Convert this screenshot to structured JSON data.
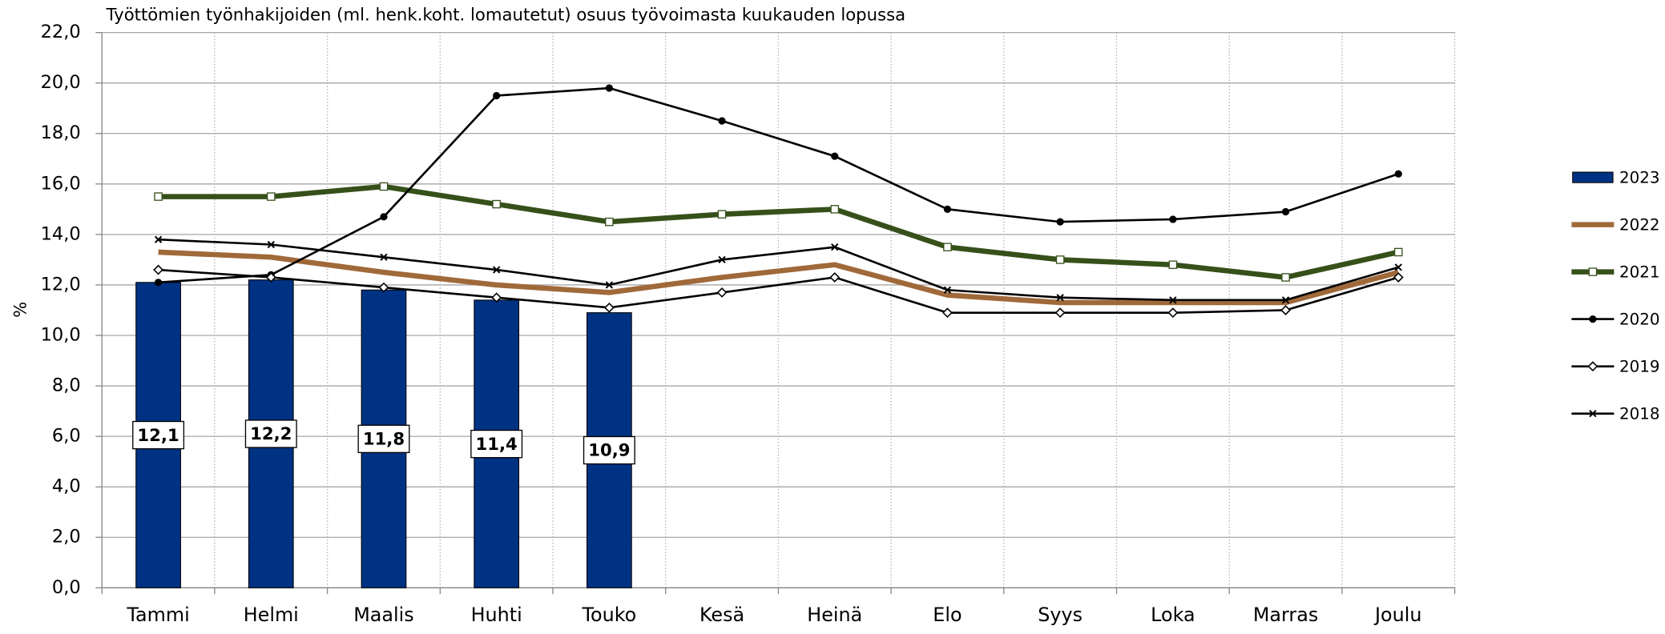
{
  "chart_data": {
    "type": "combo",
    "title": "Työttömien työnhakijoiden (ml. henk.koht. lomautetut) osuus työvoimasta kuukauden lopussa",
    "y_label": "%",
    "categories": [
      "Tammi",
      "Helmi",
      "Maalis",
      "Huhti",
      "Touko",
      "Kesä",
      "Heinä",
      "Elo",
      "Syys",
      "Loka",
      "Marras",
      "Joulu"
    ],
    "ylim": [
      0,
      22
    ],
    "yticks": [
      {
        "value": 0,
        "label": "0,0"
      },
      {
        "value": 2,
        "label": "2,0"
      },
      {
        "value": 4,
        "label": "4,0"
      },
      {
        "value": 6,
        "label": "6,0"
      },
      {
        "value": 8,
        "label": "8,0"
      },
      {
        "value": 10,
        "label": "10,0"
      },
      {
        "value": 12,
        "label": "12,0"
      },
      {
        "value": 14,
        "label": "14,0"
      },
      {
        "value": 16,
        "label": "16,0"
      },
      {
        "value": 18,
        "label": "18,0"
      },
      {
        "value": 20,
        "label": "20,0"
      },
      {
        "value": 22,
        "label": "22,0"
      }
    ],
    "grid": true,
    "legend": "right",
    "series": [
      {
        "name": "2023",
        "type": "bar",
        "color": "#003283",
        "values": [
          12.1,
          12.2,
          11.8,
          11.4,
          10.9,
          null,
          null,
          null,
          null,
          null,
          null,
          null
        ],
        "value_labels": [
          "12,1",
          "12,2",
          "11,8",
          "11,4",
          "10,9",
          null,
          null,
          null,
          null,
          null,
          null,
          null
        ]
      },
      {
        "name": "2022",
        "type": "line",
        "color": "#a0693a",
        "line_width": 5,
        "marker": "none",
        "values": [
          13.3,
          13.1,
          12.5,
          12.0,
          11.7,
          12.3,
          12.8,
          11.6,
          11.3,
          11.3,
          11.3,
          12.5
        ]
      },
      {
        "name": "2021",
        "type": "line",
        "color": "#36501a",
        "line_width": 5,
        "marker": "square",
        "values": [
          15.5,
          15.5,
          15.9,
          15.2,
          14.5,
          14.8,
          15.0,
          13.5,
          13.0,
          12.8,
          12.3,
          13.3
        ]
      },
      {
        "name": "2020",
        "type": "line",
        "color": "#000000",
        "line_width": 2,
        "marker": "circle",
        "values": [
          12.1,
          12.4,
          14.7,
          19.5,
          19.8,
          18.5,
          17.1,
          15.0,
          14.5,
          14.6,
          14.9,
          16.4
        ]
      },
      {
        "name": "2019",
        "type": "line",
        "color": "#000000",
        "line_width": 2,
        "marker": "diamond",
        "values": [
          12.6,
          12.3,
          11.9,
          11.5,
          11.1,
          11.7,
          12.3,
          10.9,
          10.9,
          10.9,
          11.0,
          12.3
        ]
      },
      {
        "name": "2018",
        "type": "line",
        "color": "#000000",
        "line_width": 2,
        "marker": "x",
        "values": [
          13.8,
          13.6,
          13.1,
          12.6,
          12.0,
          13.0,
          13.5,
          11.8,
          11.5,
          11.4,
          11.4,
          12.7
        ]
      }
    ]
  }
}
